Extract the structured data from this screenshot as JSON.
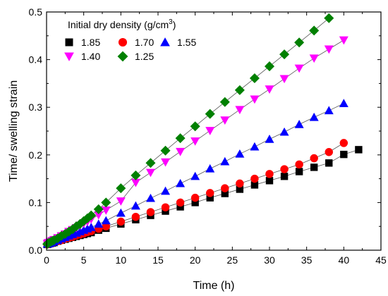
{
  "chart_data": {
    "type": "scatter",
    "xlabel": "Time (h)",
    "ylabel": "Time/ swelling strain",
    "xlim": [
      0,
      45
    ],
    "ylim": [
      0,
      0.5
    ],
    "xticks": [
      0,
      5,
      10,
      15,
      20,
      25,
      30,
      35,
      40,
      45
    ],
    "yticks": [
      0.0,
      0.1,
      0.2,
      0.3,
      0.4,
      0.5
    ],
    "xtick_labels": [
      "0",
      "5",
      "10",
      "15",
      "20",
      "25",
      "30",
      "35",
      "40",
      "45"
    ],
    "ytick_labels": [
      "0.0",
      "0.1",
      "0.2",
      "0.3",
      "0.4",
      "0.5"
    ],
    "grid": false,
    "legend": {
      "title_main": "Initial dry density (g/cm",
      "title_sup": "3",
      "title_end": ")",
      "placement": "top-left"
    },
    "series": [
      {
        "name": "1.85",
        "marker": "square",
        "color": "#000000",
        "x": [
          0.1,
          0.25,
          0.5,
          0.75,
          1,
          1.5,
          2,
          2.5,
          3,
          3.5,
          4,
          4.5,
          5,
          5.5,
          6,
          7,
          8,
          10,
          12,
          14,
          16,
          18,
          20,
          22,
          24,
          26,
          28,
          30,
          32,
          34,
          36,
          38,
          40,
          42
        ],
        "y": [
          0.012,
          0.013,
          0.014,
          0.015,
          0.016,
          0.019,
          0.021,
          0.023,
          0.025,
          0.027,
          0.029,
          0.031,
          0.033,
          0.035,
          0.037,
          0.042,
          0.046,
          0.055,
          0.064,
          0.073,
          0.082,
          0.091,
          0.1,
          0.11,
          0.119,
          0.128,
          0.137,
          0.146,
          0.155,
          0.165,
          0.174,
          0.183,
          0.201,
          0.211
        ]
      },
      {
        "name": "1.70",
        "marker": "circle",
        "color": "#ff0000",
        "x": [
          0.1,
          0.25,
          0.5,
          0.75,
          1,
          1.5,
          2,
          2.5,
          3,
          3.5,
          4,
          4.5,
          5,
          5.5,
          6,
          7,
          8,
          10,
          12,
          14,
          16,
          18,
          20,
          22,
          24,
          26,
          28,
          30,
          32,
          34,
          36,
          38,
          40
        ],
        "y": [
          0.012,
          0.013,
          0.014,
          0.015,
          0.017,
          0.019,
          0.021,
          0.024,
          0.026,
          0.028,
          0.031,
          0.033,
          0.035,
          0.038,
          0.04,
          0.045,
          0.05,
          0.06,
          0.07,
          0.08,
          0.09,
          0.1,
          0.11,
          0.12,
          0.13,
          0.14,
          0.15,
          0.16,
          0.17,
          0.18,
          0.193,
          0.206,
          0.225
        ]
      },
      {
        "name": "1.55",
        "marker": "triangle-up",
        "color": "#0000ff",
        "x": [
          0.1,
          0.25,
          0.5,
          0.75,
          1,
          1.5,
          2,
          2.5,
          3,
          3.5,
          4,
          4.5,
          5,
          5.5,
          6,
          7,
          8,
          10,
          12,
          14,
          16,
          18,
          20,
          22,
          24,
          26,
          28,
          30,
          32,
          34,
          36,
          38,
          40
        ],
        "y": [
          0.013,
          0.014,
          0.015,
          0.017,
          0.018,
          0.021,
          0.024,
          0.027,
          0.03,
          0.033,
          0.036,
          0.039,
          0.042,
          0.045,
          0.048,
          0.055,
          0.062,
          0.078,
          0.093,
          0.109,
          0.124,
          0.14,
          0.155,
          0.171,
          0.186,
          0.202,
          0.217,
          0.233,
          0.248,
          0.264,
          0.279,
          0.293,
          0.308
        ]
      },
      {
        "name": "1.40",
        "marker": "triangle-down",
        "color": "#ff00ff",
        "x": [
          0.1,
          0.25,
          0.5,
          0.75,
          1,
          1.5,
          2,
          2.5,
          3,
          3.5,
          4,
          4.5,
          5,
          5.5,
          6,
          7,
          8,
          10,
          12,
          14,
          16,
          18,
          20,
          22,
          24,
          26,
          28,
          30,
          32,
          34,
          36,
          38,
          40
        ],
        "y": [
          0.014,
          0.016,
          0.018,
          0.02,
          0.022,
          0.026,
          0.03,
          0.034,
          0.039,
          0.043,
          0.047,
          0.052,
          0.056,
          0.06,
          0.065,
          0.074,
          0.084,
          0.103,
          0.142,
          0.163,
          0.185,
          0.207,
          0.229,
          0.251,
          0.273,
          0.295,
          0.317,
          0.338,
          0.36,
          0.382,
          0.403,
          0.422,
          0.441
        ]
      },
      {
        "name": "1.25",
        "marker": "diamond",
        "color": "#008000",
        "x": [
          0.1,
          0.25,
          0.5,
          0.75,
          1,
          1.5,
          2,
          2.5,
          3,
          3.5,
          4,
          4.5,
          5,
          5.5,
          6,
          7,
          8,
          10,
          12,
          14,
          16,
          18,
          20,
          22,
          24,
          26,
          28,
          30,
          32,
          34,
          36,
          38
        ],
        "y": [
          0.013,
          0.015,
          0.017,
          0.019,
          0.021,
          0.025,
          0.03,
          0.034,
          0.039,
          0.044,
          0.05,
          0.055,
          0.061,
          0.067,
          0.073,
          0.086,
          0.1,
          0.13,
          0.157,
          0.183,
          0.209,
          0.235,
          0.26,
          0.286,
          0.311,
          0.336,
          0.361,
          0.386,
          0.411,
          0.436,
          0.461,
          0.487
        ]
      }
    ]
  }
}
